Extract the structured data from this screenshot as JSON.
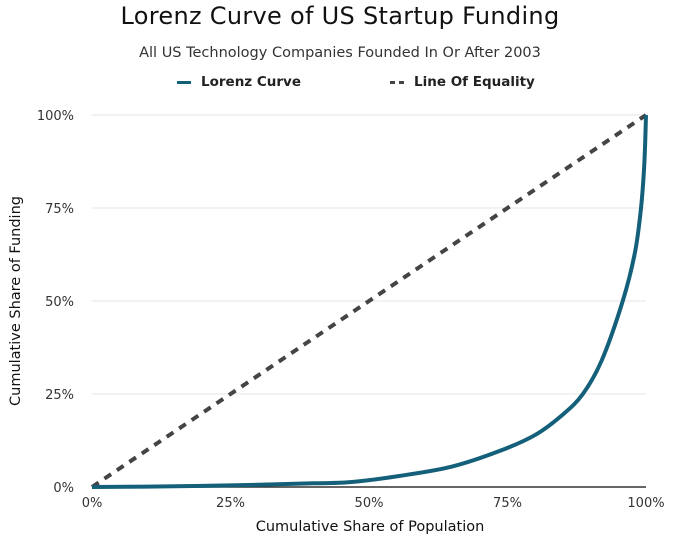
{
  "chart_data": {
    "type": "line",
    "title": "Lorenz Curve of US Startup Funding",
    "subtitle": "All US Technology Companies Founded In Or After 2003",
    "xlabel": "Cumulative Share of Population",
    "ylabel": "Cumulative Share of Funding",
    "xlim": [
      0,
      100
    ],
    "ylim": [
      0,
      100
    ],
    "grid": true,
    "legend_position": "top-center",
    "x_ticks": [
      "0%",
      "25%",
      "50%",
      "75%",
      "100%"
    ],
    "y_ticks": [
      "0%",
      "25%",
      "50%",
      "75%",
      "100%"
    ],
    "x_tick_values": [
      0,
      25,
      50,
      75,
      100
    ],
    "y_tick_values": [
      0,
      25,
      50,
      75,
      100
    ],
    "series": [
      {
        "name": "Lorenz Curve",
        "color": "#14607a",
        "style": "solid",
        "x": [
          0,
          10,
          20,
          30,
          40,
          46.6,
          55.6,
          65,
          73.6,
          80,
          85,
          88.6,
          92,
          95.8,
          98,
          99.1,
          99.7,
          100
        ],
        "y": [
          0,
          0.1,
          0.3,
          0.6,
          1.0,
          1.3,
          3.0,
          5.5,
          9.7,
          14,
          19.5,
          25,
          34,
          50,
          63,
          75,
          87,
          100
        ]
      },
      {
        "name": "Line Of Equality",
        "color": "#444444",
        "style": "dashed",
        "x": [
          0,
          100
        ],
        "y": [
          0,
          100
        ]
      }
    ]
  }
}
